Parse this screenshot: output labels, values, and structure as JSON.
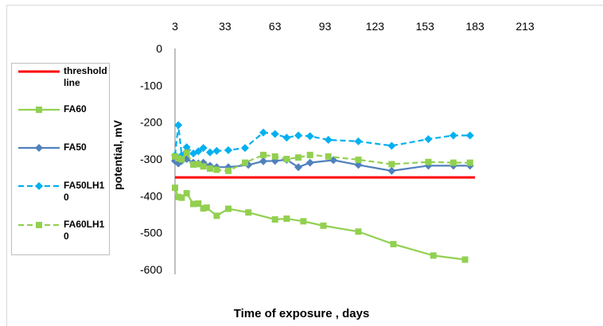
{
  "chart_data": {
    "type": "line",
    "xlabel": "Time of exposure , days",
    "ylabel": "potential, mV",
    "xlim": [
      3,
      213
    ],
    "ylim": [
      -600,
      0
    ],
    "xticks": [
      "3",
      "33",
      "63",
      "93",
      "123",
      "153",
      "183",
      "213"
    ],
    "yticks": [
      "0",
      "-100",
      "-200",
      "-300",
      "-400",
      "-500",
      "-600"
    ],
    "x_axis_position": "top",
    "grid": false,
    "legend_position": "left",
    "series": [
      {
        "name": "threshold line",
        "color": "#ff0000",
        "marker": "none",
        "dash": "solid",
        "x": [
          3,
          183
        ],
        "y": [
          -350,
          -350
        ]
      },
      {
        "name": "FA60",
        "color": "#92d050",
        "marker": "square",
        "dash": "solid",
        "x": [
          3,
          5,
          7,
          10,
          14,
          17,
          20,
          22,
          28,
          35,
          47,
          63,
          70,
          80,
          92,
          113,
          134,
          158,
          177
        ],
        "y": [
          -378,
          -403,
          -405,
          -393,
          -422,
          -421,
          -434,
          -432,
          -454,
          -435,
          -445,
          -464,
          -462,
          -469,
          -481,
          -497,
          -531,
          -562,
          -573
        ]
      },
      {
        "name": "FA50",
        "color": "#4f81bd",
        "marker": "diamond",
        "dash": "solid",
        "x": [
          3,
          5,
          7,
          10,
          14,
          17,
          20,
          24,
          28,
          35,
          47,
          56,
          63,
          70,
          77,
          84,
          98,
          113,
          133,
          155,
          170,
          180
        ],
        "y": [
          -305,
          -312,
          -305,
          -300,
          -310,
          -312,
          -310,
          -318,
          -322,
          -322,
          -316,
          -306,
          -305,
          -302,
          -322,
          -310,
          -303,
          -316,
          -332,
          -318,
          -318,
          -318
        ]
      },
      {
        "name": "FA50LH10",
        "color": "#00b0f0",
        "marker": "diamond",
        "dash": "dash",
        "x": [
          3,
          5,
          7,
          10,
          14,
          17,
          20,
          24,
          28,
          35,
          45,
          56,
          63,
          70,
          77,
          84,
          95,
          113,
          133,
          155,
          170,
          180
        ],
        "y": [
          -290,
          -208,
          -290,
          -268,
          -285,
          -279,
          -270,
          -282,
          -278,
          -276,
          -270,
          -228,
          -232,
          -242,
          -236,
          -238,
          -248,
          -252,
          -264,
          -246,
          -236,
          -236
        ]
      },
      {
        "name": "FA60LH10",
        "color": "#92d050",
        "marker": "square",
        "dash": "dash",
        "x": [
          3,
          5,
          7,
          10,
          14,
          17,
          20,
          24,
          28,
          35,
          45,
          56,
          63,
          70,
          77,
          84,
          95,
          113,
          133,
          155,
          170,
          180
        ],
        "y": [
          -293,
          -298,
          -301,
          -283,
          -315,
          -314,
          -320,
          -326,
          -329,
          -332,
          -310,
          -289,
          -293,
          -300,
          -296,
          -289,
          -293,
          -302,
          -314,
          -308,
          -310,
          -310
        ]
      }
    ]
  }
}
